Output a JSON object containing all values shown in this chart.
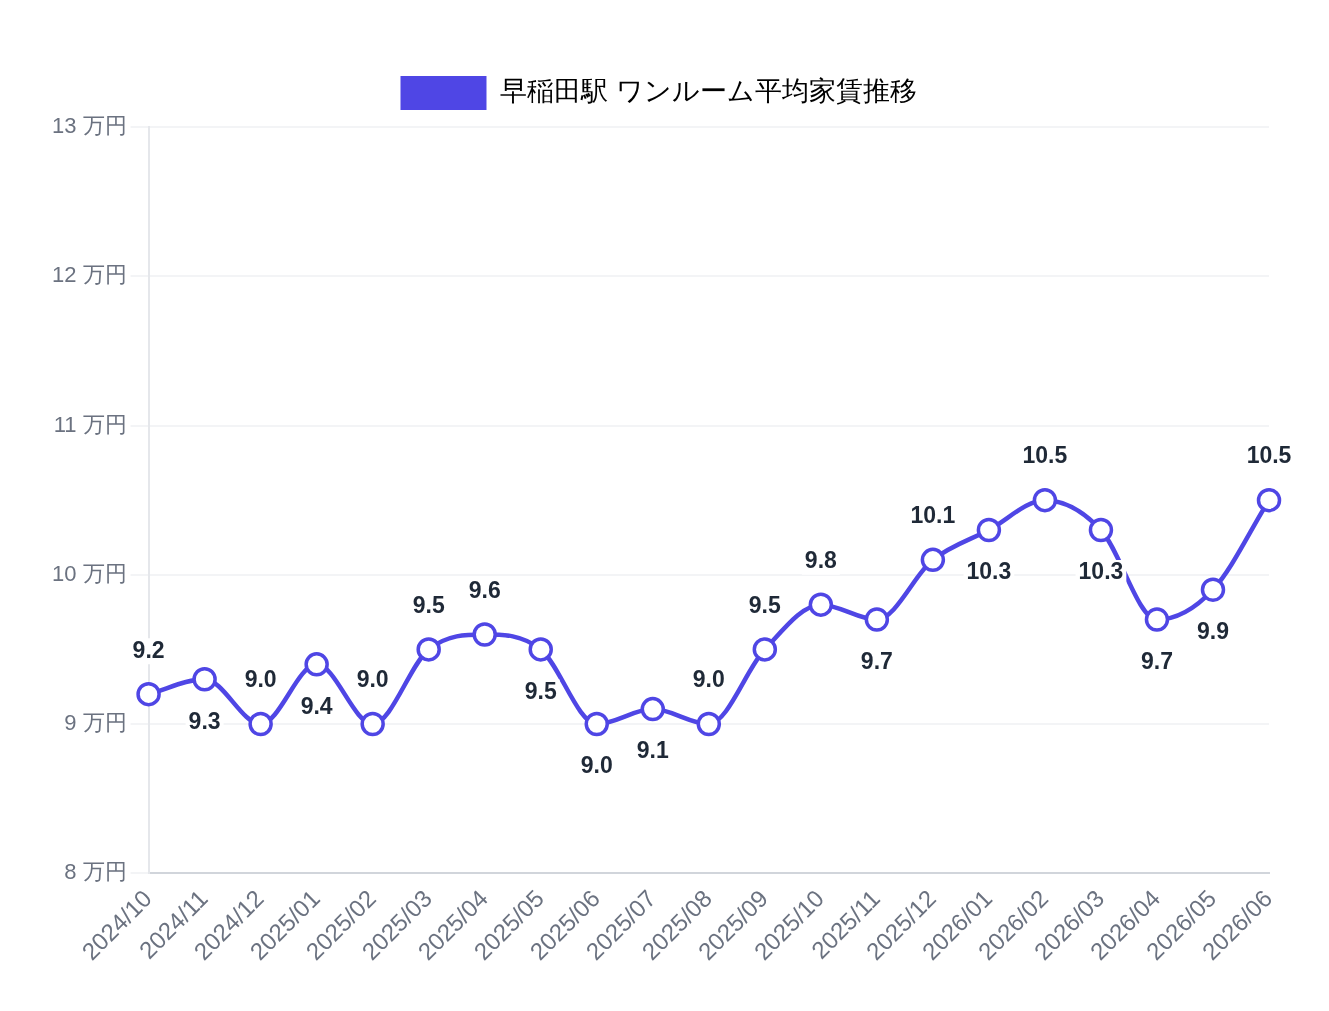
{
  "chart_data": {
    "type": "line",
    "categories": [
      "2024/10",
      "2024/11",
      "2024/12",
      "2025/01",
      "2025/02",
      "2025/03",
      "2025/04",
      "2025/05",
      "2025/06",
      "2025/07",
      "2025/08",
      "2025/09",
      "2025/10",
      "2025/11",
      "2025/12",
      "2026/01",
      "2026/02",
      "2026/03",
      "2026/04",
      "2026/05",
      "2026/06"
    ],
    "series": [
      {
        "name": "早稲田駅 ワンルーム平均家賃推移",
        "color": "#4f46e5",
        "values": [
          9.2,
          9.3,
          9.0,
          9.4,
          9.0,
          9.5,
          9.6,
          9.5,
          9.0,
          9.1,
          9.0,
          9.5,
          9.8,
          9.7,
          10.1,
          10.3,
          10.5,
          10.3,
          9.7,
          9.9,
          10.5
        ],
        "value_labels": [
          "9.2",
          "9.3",
          "9.0",
          "9.4",
          "9.0",
          "9.5",
          "9.6",
          "9.5",
          "9.0",
          "9.1",
          "9.0",
          "9.5",
          "9.8",
          "9.7",
          "10.1",
          "10.3",
          "10.5",
          "10.3",
          "9.7",
          "9.9",
          "10.5"
        ]
      }
    ],
    "ylim": [
      8,
      13
    ],
    "yticks": [
      {
        "value": 8,
        "label": "8 万円"
      },
      {
        "value": 9,
        "label": "9 万円"
      },
      {
        "value": 10,
        "label": "10 万円"
      },
      {
        "value": 11,
        "label": "11 万円"
      },
      {
        "value": 12,
        "label": "12 万円"
      },
      {
        "value": 13,
        "label": "13 万円"
      }
    ],
    "grid": "y",
    "legend": "top",
    "marker": "circle",
    "line_style": "solid"
  }
}
